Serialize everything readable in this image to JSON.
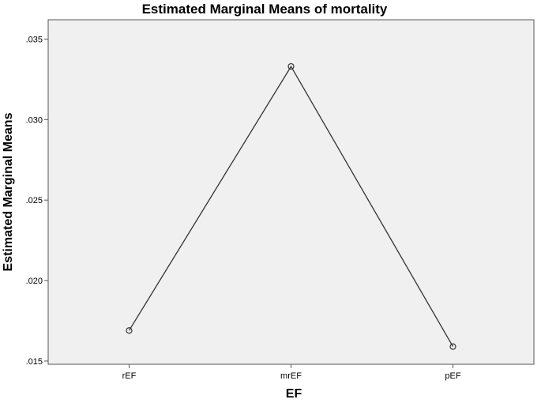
{
  "chart_data": {
    "type": "line",
    "title": "Estimated Marginal Means of mortality",
    "xlabel": "EF",
    "ylabel": "Estimated Marginal Means",
    "categories": [
      "rEF",
      "mrEF",
      "pEF"
    ],
    "values": [
      0.0169,
      0.0333,
      0.0159
    ],
    "ylim": [
      0.0148,
      0.0362
    ],
    "yticks": [
      0.015,
      0.02,
      0.025,
      0.03,
      0.035
    ],
    "ytick_labels": [
      ".015",
      ".020",
      ".025",
      ".030",
      ".035"
    ],
    "grid": false,
    "legend": "none",
    "colors": {
      "plot_background": "#f0f0f0",
      "line": "#333333",
      "axis": "#555555"
    }
  }
}
